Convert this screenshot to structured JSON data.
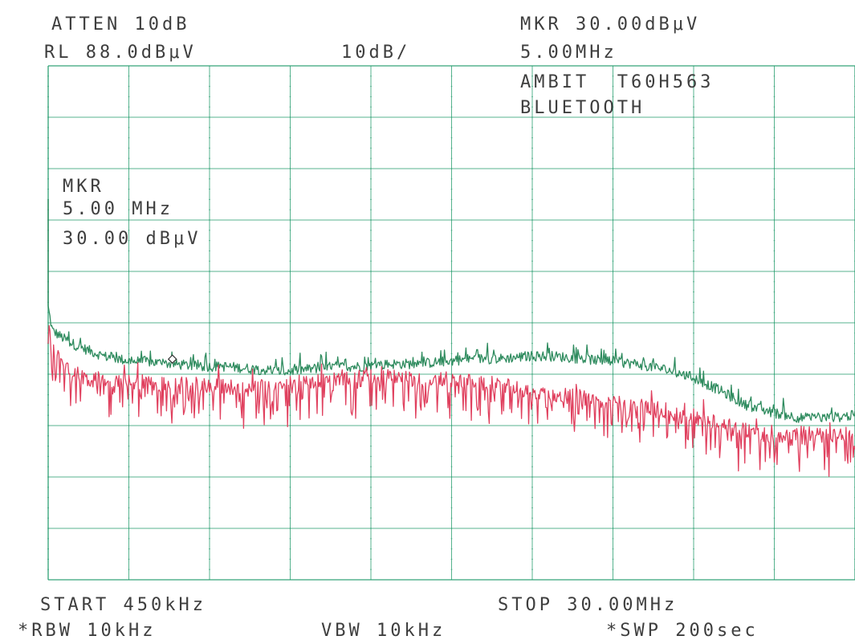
{
  "header": {
    "atten": "ATTEN 10dB",
    "ref_level": "RL 88.0dBμV",
    "scale": "10dB/",
    "marker_readout": "MKR 30.00dBμV",
    "marker_freq": "5.00MHz",
    "device_line1": "AMBIT  T60H563",
    "device_line2": "BLUETOOTH"
  },
  "marker_box": {
    "label": "MKR",
    "freq": "5.00 MHz",
    "level": "30.00 dBμV"
  },
  "footer": {
    "start": "START 450kHz",
    "stop": "STOP 30.00MHz",
    "rbw": "*RBW 10kHz",
    "vbw": "VBW 10kHz",
    "sweep": "*SWP 200sec"
  },
  "colors": {
    "grid": "#1f9a6a",
    "peak_trace": "#2e8b5e",
    "avg_trace": "#e0405e",
    "text": "#3e3e3e"
  },
  "chart_data": {
    "type": "line",
    "x_unit": "MHz",
    "y_unit": "dBμV",
    "xlim": [
      0.45,
      30.0
    ],
    "ylim": [
      -12,
      88
    ],
    "ref_level": 88.0,
    "scale_db_per_div": 10,
    "grid": true,
    "marker": {
      "x": 5.0,
      "y": 30.0
    },
    "series": [
      {
        "color": "#2e8b5e",
        "x": [
          0.45,
          0.6,
          1.0,
          1.5,
          2.0,
          2.5,
          3.0,
          3.5,
          4.0,
          4.5,
          5.0,
          6.0,
          7.0,
          8.0,
          9.0,
          10.0,
          11.0,
          12.0,
          13.0,
          14.0,
          15.0,
          16.0,
          17.0,
          18.0,
          19.0,
          20.0,
          21.0,
          22.0,
          23.0,
          24.0,
          25.0,
          26.0,
          27.0,
          28.0,
          29.0,
          30.0
        ],
        "y": [
          41.0,
          36.5,
          35.0,
          33.5,
          32.5,
          31.5,
          31.0,
          30.5,
          30.5,
          30.2,
          30.0,
          29.5,
          29.5,
          29.0,
          28.5,
          29.0,
          29.5,
          29.5,
          30.0,
          30.0,
          30.5,
          31.0,
          31.0,
          31.5,
          31.5,
          31.0,
          30.5,
          30.0,
          29.0,
          27.5,
          25.0,
          22.0,
          20.5,
          19.5,
          19.5,
          20.0
        ]
      },
      {
        "color": "#e0405e",
        "x": [
          0.45,
          0.6,
          1.0,
          1.5,
          2.0,
          2.5,
          3.0,
          3.5,
          4.0,
          4.5,
          5.0,
          6.0,
          7.0,
          8.0,
          9.0,
          10.0,
          11.0,
          12.0,
          13.0,
          14.0,
          15.0,
          16.0,
          17.0,
          18.0,
          19.0,
          20.0,
          21.0,
          22.0,
          23.0,
          24.0,
          25.0,
          26.0,
          27.0,
          28.0,
          29.0,
          30.0
        ],
        "y": [
          36.0,
          33.0,
          30.0,
          28.0,
          27.0,
          27.0,
          26.5,
          26.5,
          26.5,
          26.0,
          26.0,
          26.0,
          25.5,
          25.5,
          26.0,
          26.5,
          27.0,
          27.5,
          27.5,
          27.0,
          27.0,
          26.5,
          26.0,
          25.0,
          24.0,
          23.5,
          22.5,
          22.0,
          21.0,
          20.0,
          18.5,
          17.0,
          16.0,
          16.5,
          16.0,
          17.0
        ]
      }
    ]
  }
}
